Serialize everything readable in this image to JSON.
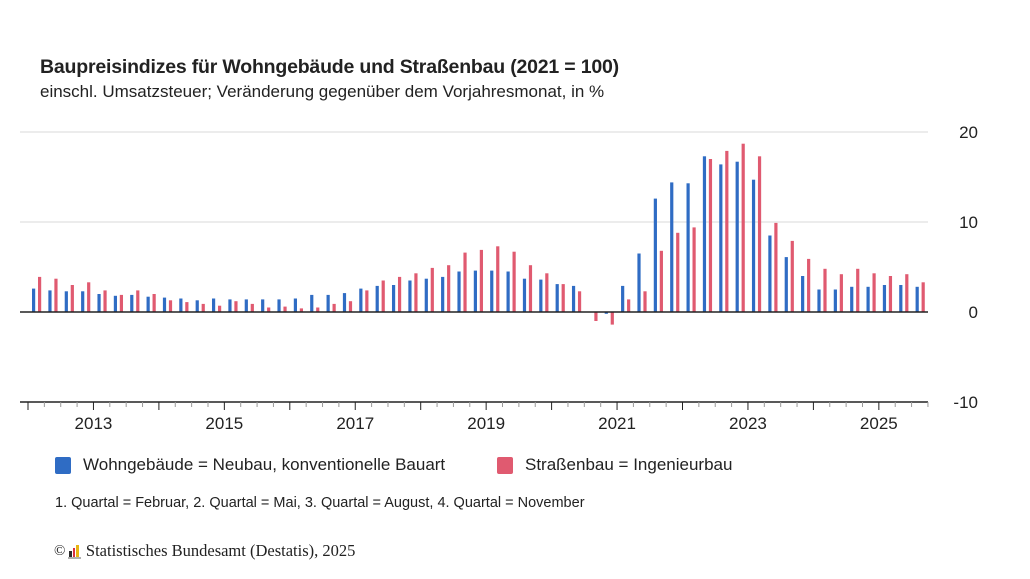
{
  "header": {
    "title": "Baupreisindizes für Wohngebäude und Straßenbau (2021 = 100)",
    "subtitle": "einschl. Umsatzsteuer; Veränderung gegenüber dem Vorjahresmonat, in %"
  },
  "legend": {
    "items": [
      {
        "label": "Wohngebäude = Neubau, konventionelle Bauart",
        "color": "#2f6cc4"
      },
      {
        "label": "Straßenbau = Ingenieurbau",
        "color": "#e05a70"
      }
    ]
  },
  "note": "1. Quartal = Februar, 2. Quartal = Mai, 3. Quartal = August, 4. Quartal = November",
  "source": {
    "copyright_symbol": "©",
    "text": "Statistisches Bundesamt (Destatis), 2025",
    "logo_colors": [
      "#2b2b2b",
      "#d9303f",
      "#e8b412"
    ]
  },
  "chart_data": {
    "type": "bar",
    "title": "Baupreisindizes für Wohngebäude und Straßenbau (2021 = 100)",
    "subtitle": "einschl. Umsatzsteuer; Veränderung gegenüber dem Vorjahresmonat, in %",
    "xlabel": "",
    "ylabel": "",
    "ylim": [
      -10,
      20
    ],
    "yticks": [
      20,
      10,
      0,
      -10
    ],
    "y_axis_position": "right",
    "grid": true,
    "legend_position": "bottom-left",
    "x_start": "2012 Q1",
    "x_end": "2025 Q3",
    "year_range": [
      2012,
      2025
    ],
    "xtick_labels": [
      "2013",
      "2015",
      "2017",
      "2019",
      "2021",
      "2023",
      "2025"
    ],
    "categories": [
      "2012 Q1",
      "2012 Q2",
      "2012 Q3",
      "2012 Q4",
      "2013 Q1",
      "2013 Q2",
      "2013 Q3",
      "2013 Q4",
      "2014 Q1",
      "2014 Q2",
      "2014 Q3",
      "2014 Q4",
      "2015 Q1",
      "2015 Q2",
      "2015 Q3",
      "2015 Q4",
      "2016 Q1",
      "2016 Q2",
      "2016 Q3",
      "2016 Q4",
      "2017 Q1",
      "2017 Q2",
      "2017 Q3",
      "2017 Q4",
      "2018 Q1",
      "2018 Q2",
      "2018 Q3",
      "2018 Q4",
      "2019 Q1",
      "2019 Q2",
      "2019 Q3",
      "2019 Q4",
      "2020 Q1",
      "2020 Q2",
      "2020 Q3",
      "2020 Q4",
      "2021 Q1",
      "2021 Q2",
      "2021 Q3",
      "2021 Q4",
      "2022 Q1",
      "2022 Q2",
      "2022 Q3",
      "2022 Q4",
      "2023 Q1",
      "2023 Q2",
      "2023 Q3",
      "2023 Q4",
      "2024 Q1",
      "2024 Q2",
      "2024 Q3",
      "2024 Q4",
      "2025 Q1",
      "2025 Q2",
      "2025 Q3"
    ],
    "series": [
      {
        "name": "Wohngebäude = Neubau, konventionelle Bauart",
        "color": "#2f6cc4",
        "values": [
          2.6,
          2.4,
          2.3,
          2.3,
          2.0,
          1.8,
          1.9,
          1.7,
          1.6,
          1.5,
          1.3,
          1.5,
          1.4,
          1.4,
          1.4,
          1.4,
          1.5,
          1.9,
          1.9,
          2.1,
          2.6,
          2.9,
          3.0,
          3.5,
          3.7,
          3.9,
          4.5,
          4.6,
          4.6,
          4.5,
          3.7,
          3.6,
          3.1,
          2.9,
          0.0,
          -0.2,
          2.9,
          6.5,
          12.6,
          14.4,
          14.3,
          17.3,
          16.4,
          16.7,
          14.7,
          8.5,
          6.1,
          4.0,
          2.5,
          2.5,
          2.8,
          2.8,
          3.0,
          3.0,
          2.8
        ]
      },
      {
        "name": "Straßenbau = Ingenieurbau",
        "color": "#e05a70",
        "values": [
          3.9,
          3.7,
          3.0,
          3.3,
          2.4,
          1.9,
          2.4,
          2.0,
          1.3,
          1.1,
          0.9,
          0.7,
          1.2,
          0.9,
          0.5,
          0.6,
          0.4,
          0.5,
          0.9,
          1.2,
          2.4,
          3.5,
          3.9,
          4.3,
          4.9,
          5.2,
          6.6,
          6.9,
          7.3,
          6.7,
          5.2,
          4.3,
          3.1,
          2.3,
          -1.0,
          -1.4,
          1.4,
          2.3,
          6.8,
          8.8,
          9.4,
          17.0,
          17.9,
          18.7,
          17.3,
          9.9,
          7.9,
          5.9,
          4.8,
          4.2,
          4.8,
          4.3,
          4.0,
          4.2,
          3.3
        ]
      }
    ]
  }
}
